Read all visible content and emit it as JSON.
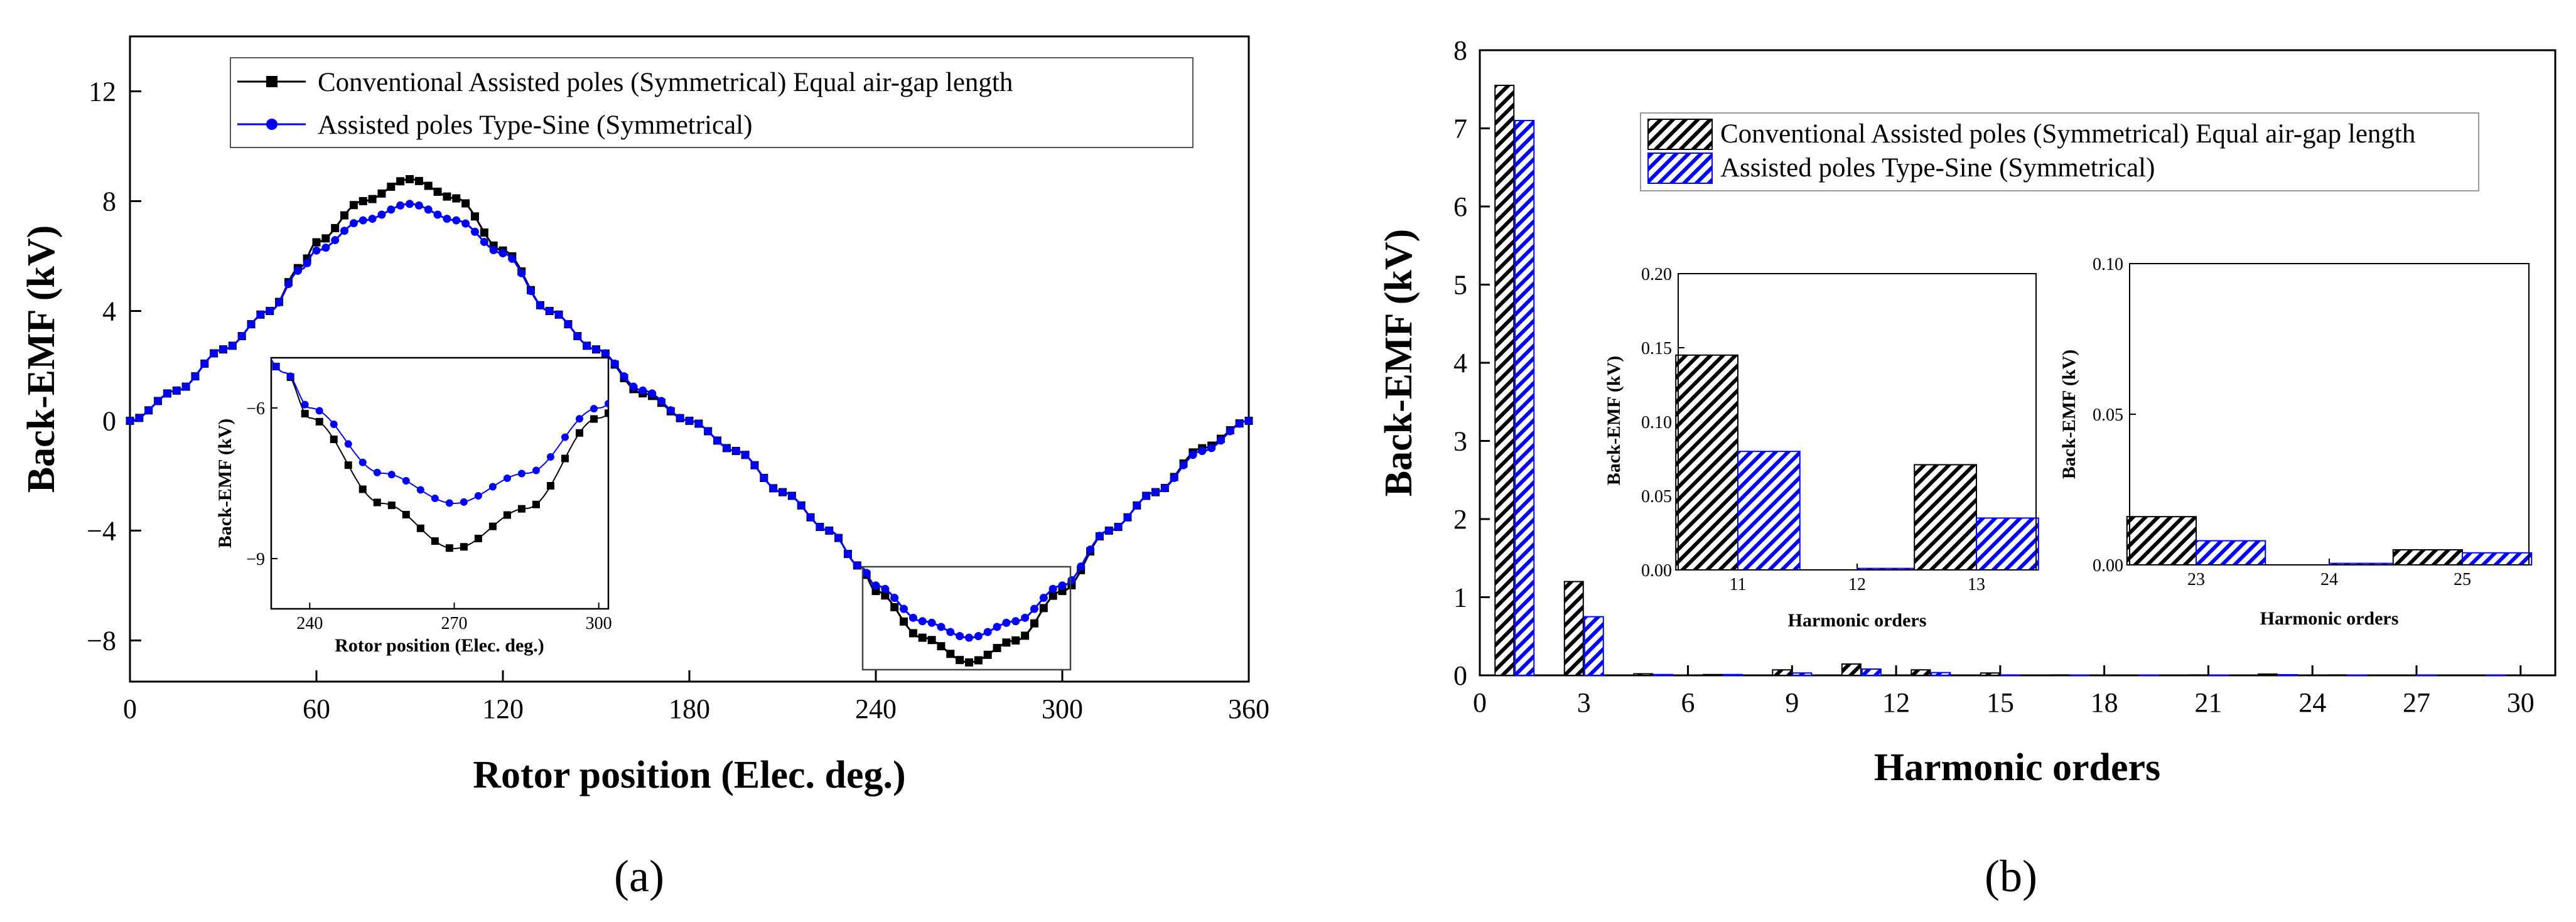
{
  "chart_data": [
    {
      "type": "line",
      "caption": "(a)",
      "xlabel": "Rotor position (Elec. deg.)",
      "ylabel": "Back-EMF (kV)",
      "xlim": [
        0,
        360
      ],
      "ylim": [
        -9.5,
        14
      ],
      "xticks": [
        0,
        60,
        120,
        180,
        240,
        300,
        360
      ],
      "xtick_labels": [
        "0",
        "60",
        "120",
        "180",
        "240",
        "300",
        "360"
      ],
      "yticks": [
        -8,
        -4,
        0,
        4,
        8,
        12
      ],
      "ytick_labels": [
        "−8",
        "−4",
        "0",
        "4",
        "8",
        "12"
      ],
      "legend": [
        {
          "label": "Conventional Assisted poles (Symmetrical) Equal air-gap length",
          "color": "#000000",
          "marker": "square"
        },
        {
          "label": "Assisted poles Type-Sine (Symmetrical)",
          "color": "#0000ff",
          "marker": "circle"
        }
      ],
      "series": [
        {
          "name": "Conventional Assisted poles (Symmetrical) Equal air-gap length",
          "color": "#000000",
          "x": [
            0,
            15,
            30,
            45,
            55,
            60,
            75,
            90,
            105,
            120,
            135,
            150,
            165,
            180,
            195,
            210,
            225,
            235,
            240,
            255,
            270,
            285,
            300,
            315,
            330,
            345,
            360
          ],
          "y": [
            0,
            1.1,
            2.6,
            4.0,
            5.6,
            6.5,
            8.0,
            8.8,
            8.1,
            6.2,
            4.0,
            2.6,
            1.0,
            0,
            -1.1,
            -2.6,
            -4.0,
            -5.3,
            -6.2,
            -7.9,
            -8.8,
            -8.0,
            -6.2,
            -4.0,
            -2.6,
            -1.0,
            0
          ]
        },
        {
          "name": "Assisted poles Type-Sine (Symmetrical)",
          "color": "#0000ff",
          "x": [
            0,
            15,
            30,
            45,
            55,
            60,
            75,
            90,
            105,
            120,
            135,
            150,
            165,
            180,
            195,
            210,
            225,
            235,
            240,
            255,
            270,
            285,
            300,
            315,
            330,
            345,
            360
          ],
          "y": [
            0,
            1.1,
            2.6,
            4.0,
            5.5,
            6.2,
            7.3,
            7.9,
            7.3,
            6.1,
            4.0,
            2.6,
            1.1,
            0,
            -1.1,
            -2.6,
            -4.0,
            -5.3,
            -6.0,
            -7.3,
            -7.9,
            -7.3,
            -6.0,
            -4.0,
            -2.6,
            -1.1,
            0
          ]
        }
      ],
      "inset": {
        "xlabel": "Rotor position (Elec. deg.)",
        "ylabel": "Back-EMF (kV)",
        "xlim": [
          232,
          302
        ],
        "ylim": [
          -10,
          -5
        ],
        "xticks": [
          240,
          270,
          300
        ],
        "xtick_labels": [
          "240",
          "270",
          "300"
        ],
        "yticks": [
          -6,
          -9
        ],
        "ytick_labels": [
          "−6",
          "−9"
        ]
      }
    },
    {
      "type": "bar",
      "caption": "(b)",
      "xlabel": "Harmonic orders",
      "ylabel": "Back-EMF (kV)",
      "xlim": [
        0,
        31
      ],
      "ylim": [
        0,
        8
      ],
      "xticks": [
        0,
        3,
        6,
        9,
        12,
        15,
        18,
        21,
        24,
        27,
        30
      ],
      "xtick_labels": [
        "0",
        "3",
        "6",
        "9",
        "12",
        "15",
        "18",
        "21",
        "24",
        "27",
        "30"
      ],
      "yticks": [
        0,
        1,
        2,
        3,
        4,
        5,
        6,
        7,
        8
      ],
      "ytick_labels": [
        "0",
        "1",
        "2",
        "3",
        "4",
        "5",
        "6",
        "7",
        "8"
      ],
      "legend": [
        {
          "label": "Conventional Assisted poles (Symmetrical) Equal air-gap length",
          "color": "#000000",
          "pattern": "hatch"
        },
        {
          "label": "Assisted poles Type-Sine (Symmetrical)",
          "color": "#0000ff",
          "pattern": "hatch"
        }
      ],
      "categories": [
        1,
        3,
        5,
        7,
        9,
        11,
        13,
        15,
        17,
        19,
        21,
        23,
        25,
        27,
        29
      ],
      "series": [
        {
          "name": "Conventional Assisted poles (Symmetrical) Equal air-gap length",
          "color": "#000000",
          "values": [
            7.55,
            1.2,
            0.02,
            0.01,
            0.07,
            0.145,
            0.07,
            0.03,
            0.005,
            0.002,
            0.005,
            0.016,
            0.005,
            0.002,
            0.001
          ]
        },
        {
          "name": "Assisted poles Type-Sine (Symmetrical)",
          "color": "#0000ff",
          "values": [
            7.1,
            0.75,
            0.01,
            0.01,
            0.03,
            0.08,
            0.035,
            0.005,
            0.003,
            0.002,
            0.004,
            0.008,
            0.004,
            0.001,
            0.001
          ]
        }
      ],
      "insets": [
        {
          "ylabel": "Back-EMF (kV)",
          "xlabel": "Harmonic orders",
          "ylim": [
            0,
            0.2
          ],
          "yticks": [
            0,
            0.05,
            0.1,
            0.15,
            0.2
          ],
          "ytick_labels": [
            "0.00",
            "0.05",
            "0.10",
            "0.15",
            "0.20"
          ],
          "categories": [
            "11",
            "12",
            "13"
          ],
          "series": [
            {
              "name": "Conventional",
              "values": [
                0.145,
                0,
                0.071
              ]
            },
            {
              "name": "Type-Sine",
              "values": [
                0.08,
                0.001,
                0.035
              ]
            }
          ]
        },
        {
          "ylabel": "Back-EMF (kV)",
          "xlabel": "Harmonic orders",
          "ylim": [
            0,
            0.1
          ],
          "yticks": [
            0,
            0.05,
            0.1
          ],
          "ytick_labels": [
            "0.00",
            "0.05",
            "0.10"
          ],
          "categories": [
            "23",
            "24",
            "25"
          ],
          "series": [
            {
              "name": "Conventional",
              "values": [
                0.016,
                0,
                0.005
              ]
            },
            {
              "name": "Type-Sine",
              "values": [
                0.008,
                0.0005,
                0.004
              ]
            }
          ]
        }
      ]
    }
  ]
}
